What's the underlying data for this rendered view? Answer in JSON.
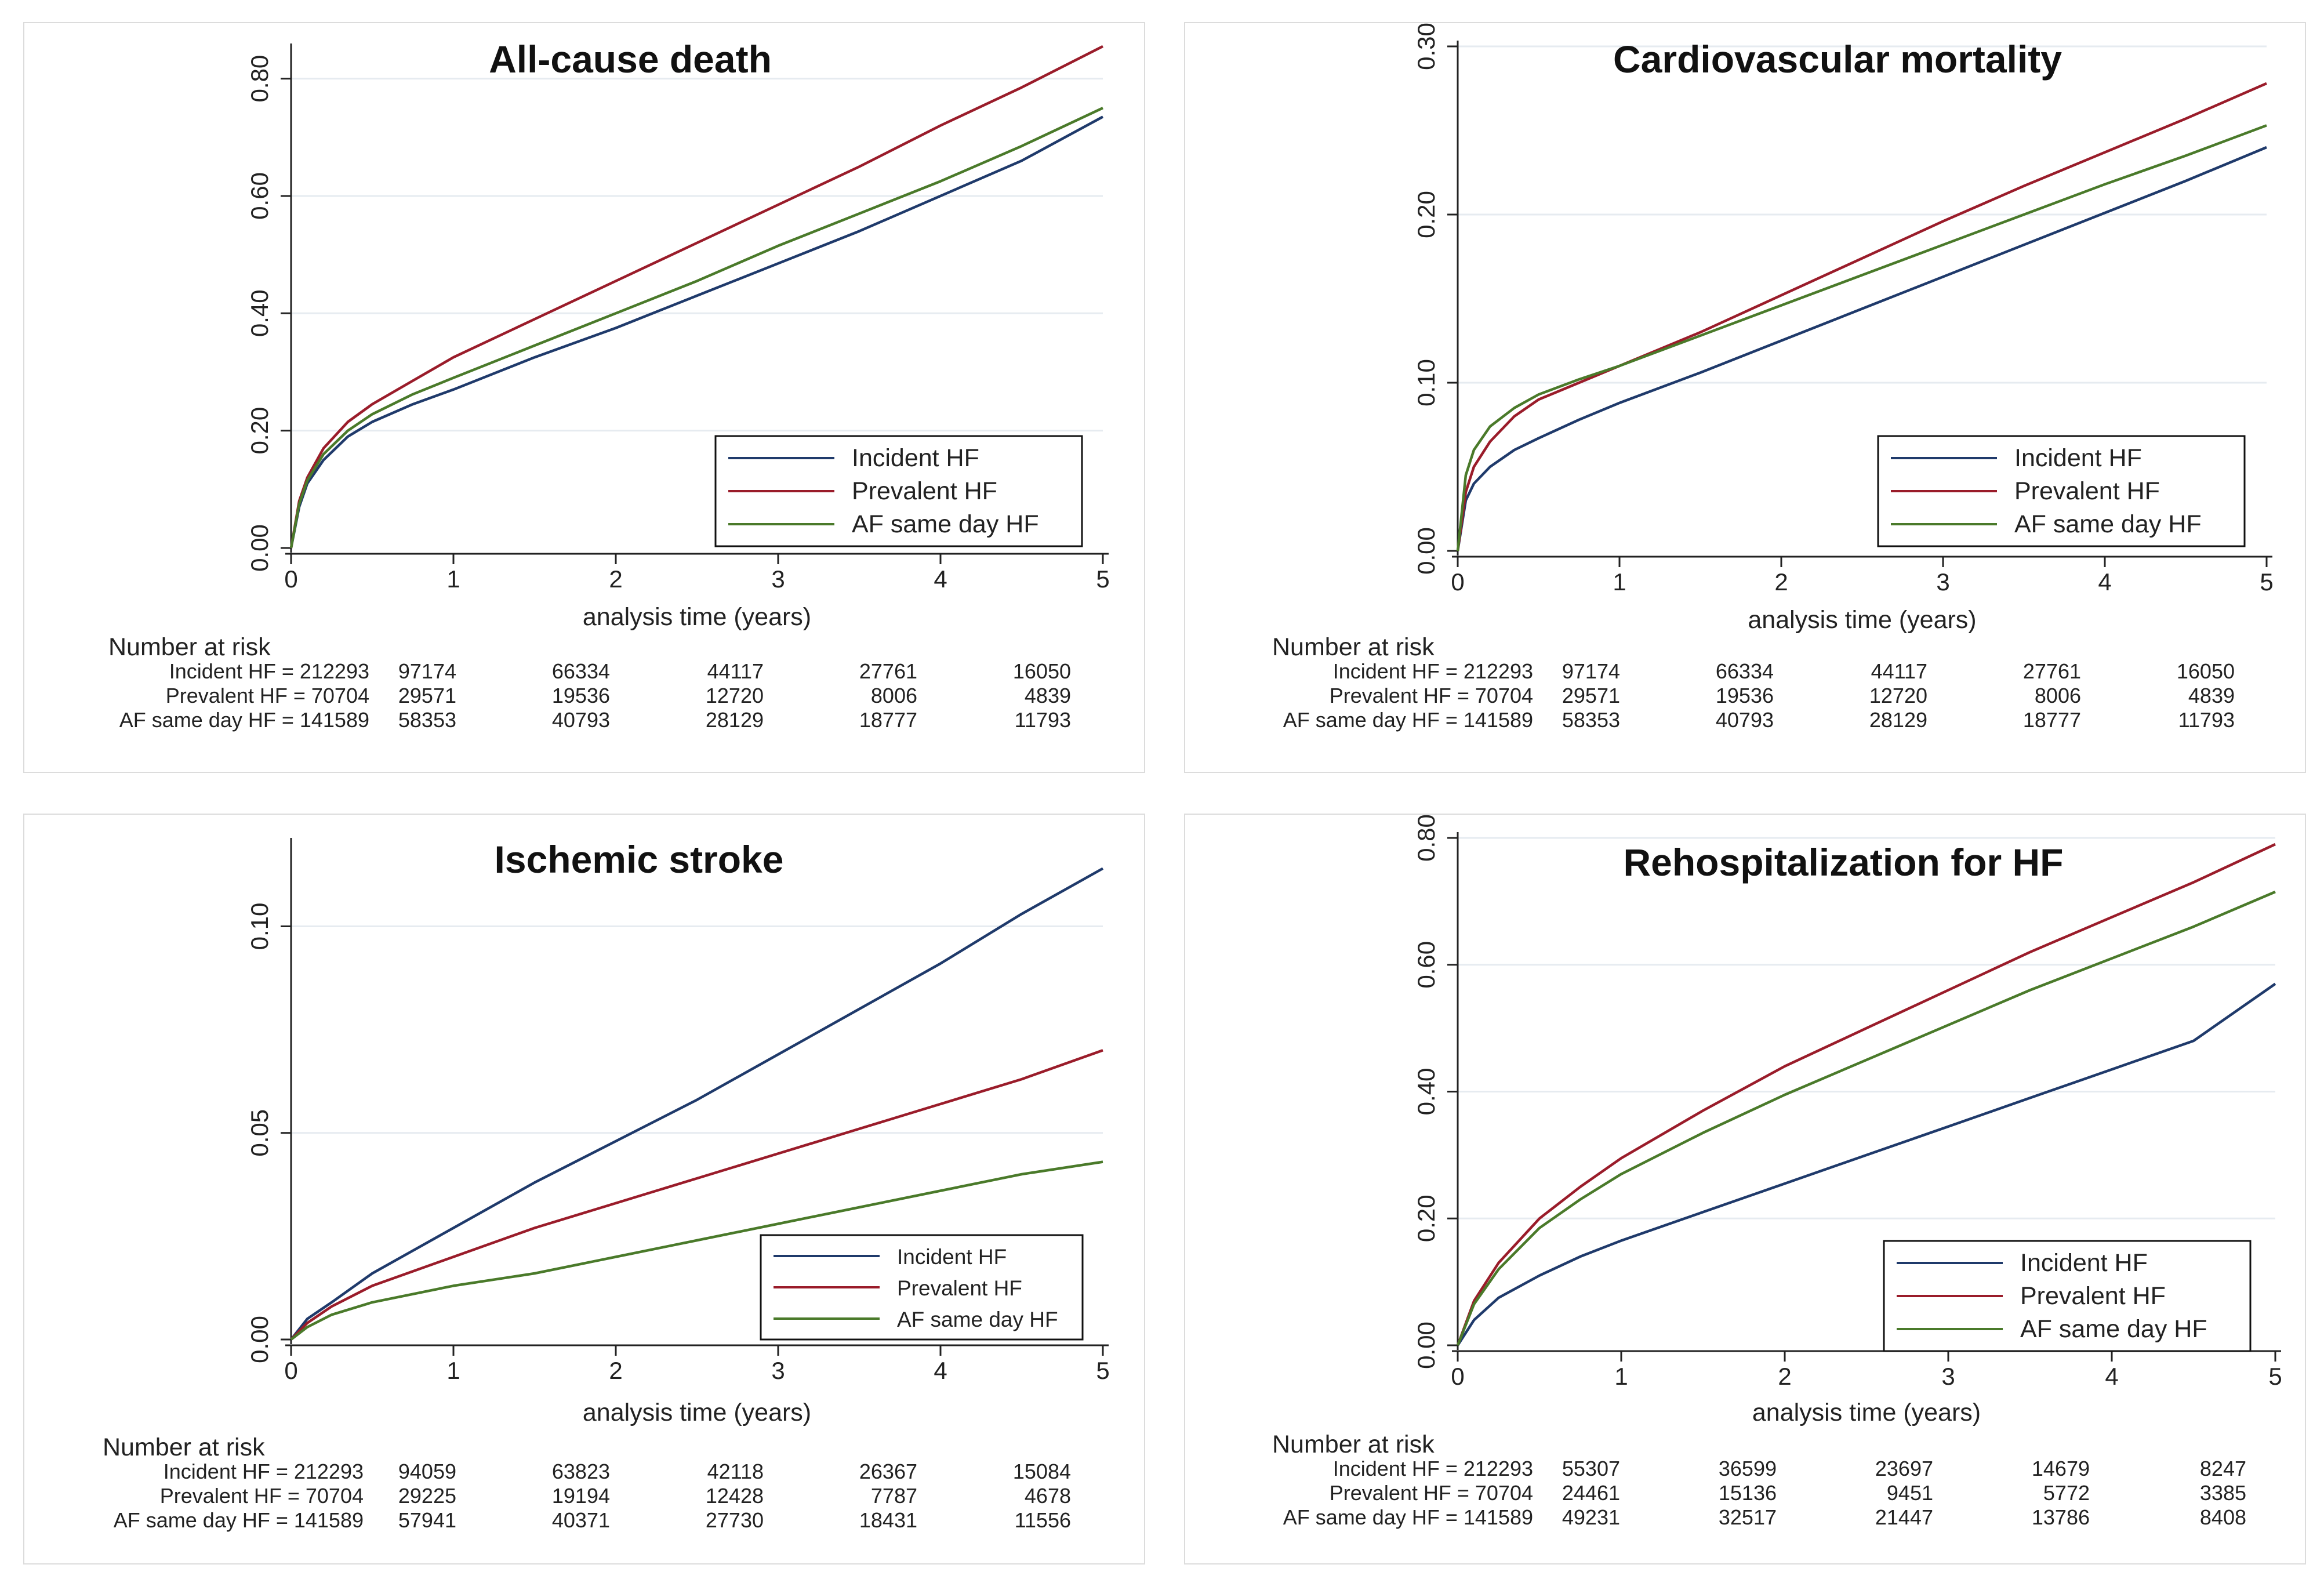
{
  "colors": {
    "incident": "#1f3a6b",
    "prevalent": "#9a1c2a",
    "af_same_day": "#4a7a2a",
    "grid": "#e6ebf0",
    "axis": "#222222"
  },
  "risk_header": "Number at risk",
  "chart_data": [
    {
      "type": "line",
      "title": "All-cause death",
      "xlabel": "analysis time (years)",
      "ylabel": "",
      "xlim": [
        0,
        5
      ],
      "ylim": [
        0,
        0.85
      ],
      "x_ticks": [
        0,
        1,
        2,
        3,
        4,
        5
      ],
      "x_tick_labels": [
        "0",
        "1",
        "2",
        "3",
        "4",
        "5"
      ],
      "y_ticks": [
        0,
        0.2,
        0.4,
        0.6,
        0.8
      ],
      "y_tick_labels": [
        "0.00",
        "0.20",
        "0.40",
        "0.60",
        "0.80"
      ],
      "grid": true,
      "legend_position": "bottom-right",
      "series": [
        {
          "name": "Incident HF",
          "key": "incident",
          "x": [
            0,
            0.05,
            0.1,
            0.2,
            0.35,
            0.5,
            0.75,
            1,
            1.5,
            2,
            2.5,
            3,
            3.5,
            4,
            4.5,
            5
          ],
          "y": [
            0,
            0.07,
            0.11,
            0.15,
            0.19,
            0.215,
            0.245,
            0.27,
            0.325,
            0.375,
            0.43,
            0.485,
            0.54,
            0.6,
            0.66,
            0.735
          ]
        },
        {
          "name": "Prevalent HF",
          "key": "prevalent",
          "x": [
            0,
            0.05,
            0.1,
            0.2,
            0.35,
            0.5,
            0.75,
            1,
            1.5,
            2,
            2.5,
            3,
            3.5,
            4,
            4.5,
            5
          ],
          "y": [
            0,
            0.08,
            0.12,
            0.17,
            0.215,
            0.245,
            0.285,
            0.325,
            0.39,
            0.455,
            0.52,
            0.585,
            0.65,
            0.72,
            0.785,
            0.855
          ]
        },
        {
          "name": "AF same day HF",
          "key": "af_same_day",
          "x": [
            0,
            0.05,
            0.1,
            0.2,
            0.35,
            0.5,
            0.75,
            1,
            1.5,
            2,
            2.5,
            3,
            3.5,
            4,
            4.5,
            5
          ],
          "y": [
            0,
            0.075,
            0.115,
            0.16,
            0.2,
            0.228,
            0.262,
            0.29,
            0.345,
            0.4,
            0.455,
            0.515,
            0.57,
            0.625,
            0.685,
            0.75
          ]
        }
      ],
      "risk_table": [
        {
          "label": "Incident HF = 212293",
          "values": [
            "97174",
            "66334",
            "44117",
            "27761",
            "16050"
          ]
        },
        {
          "label": "Prevalent HF = 70704",
          "values": [
            "29571",
            "19536",
            "12720",
            "8006",
            "4839"
          ]
        },
        {
          "label": "AF same day HF = 141589",
          "values": [
            "58353",
            "40793",
            "28129",
            "18777",
            "11793"
          ]
        }
      ]
    },
    {
      "type": "line",
      "title": "Cardiovascular mortality",
      "xlabel": "analysis time (years)",
      "ylabel": "",
      "xlim": [
        0,
        5
      ],
      "ylim": [
        0,
        0.3
      ],
      "x_ticks": [
        0,
        1,
        2,
        3,
        4,
        5
      ],
      "x_tick_labels": [
        "0",
        "1",
        "2",
        "3",
        "4",
        "5"
      ],
      "y_ticks": [
        0,
        0.1,
        0.2,
        0.3
      ],
      "y_tick_labels": [
        "0.00",
        "0.10",
        "0.20",
        "0.30"
      ],
      "grid": true,
      "legend_position": "bottom-right",
      "series": [
        {
          "name": "Incident HF",
          "key": "incident",
          "x": [
            0,
            0.05,
            0.1,
            0.2,
            0.35,
            0.5,
            0.75,
            1,
            1.5,
            2,
            2.5,
            3,
            3.5,
            4,
            4.5,
            5
          ],
          "y": [
            0,
            0.03,
            0.04,
            0.05,
            0.06,
            0.067,
            0.078,
            0.088,
            0.106,
            0.125,
            0.144,
            0.163,
            0.182,
            0.201,
            0.22,
            0.24
          ]
        },
        {
          "name": "Prevalent HF",
          "key": "prevalent",
          "x": [
            0,
            0.05,
            0.1,
            0.2,
            0.35,
            0.5,
            0.75,
            1,
            1.5,
            2,
            2.5,
            3,
            3.5,
            4,
            4.5,
            5
          ],
          "y": [
            0,
            0.035,
            0.05,
            0.065,
            0.08,
            0.09,
            0.1,
            0.11,
            0.13,
            0.152,
            0.174,
            0.196,
            0.217,
            0.237,
            0.257,
            0.278
          ]
        },
        {
          "name": "AF same day HF",
          "key": "af_same_day",
          "x": [
            0,
            0.05,
            0.1,
            0.2,
            0.35,
            0.5,
            0.75,
            1,
            1.5,
            2,
            2.5,
            3,
            3.5,
            4,
            4.5,
            5
          ],
          "y": [
            0,
            0.045,
            0.06,
            0.074,
            0.085,
            0.093,
            0.102,
            0.11,
            0.128,
            0.146,
            0.164,
            0.182,
            0.2,
            0.218,
            0.235,
            0.253
          ]
        }
      ],
      "risk_table": [
        {
          "label": "Incident HF = 212293",
          "values": [
            "97174",
            "66334",
            "44117",
            "27761",
            "16050"
          ]
        },
        {
          "label": "Prevalent HF = 70704",
          "values": [
            "29571",
            "19536",
            "12720",
            "8006",
            "4839"
          ]
        },
        {
          "label": "AF same day HF = 141589",
          "values": [
            "58353",
            "40793",
            "28129",
            "18777",
            "11793"
          ]
        }
      ]
    },
    {
      "type": "line",
      "title": "Ischemic stroke",
      "xlabel": "analysis time (years)",
      "ylabel": "",
      "xlim": [
        0,
        5
      ],
      "ylim": [
        0,
        0.12
      ],
      "x_ticks": [
        0,
        1,
        2,
        3,
        4,
        5
      ],
      "x_tick_labels": [
        "0",
        "1",
        "2",
        "3",
        "4",
        "5"
      ],
      "y_ticks": [
        0,
        0.05,
        0.1
      ],
      "y_tick_labels": [
        "0.00",
        "0.05",
        "0.10"
      ],
      "grid": true,
      "legend_position": "bottom-right",
      "series": [
        {
          "name": "Incident HF",
          "key": "incident",
          "x": [
            0,
            0.1,
            0.25,
            0.5,
            1,
            1.5,
            2,
            2.5,
            3,
            3.5,
            4,
            4.5,
            5
          ],
          "y": [
            0,
            0.005,
            0.009,
            0.016,
            0.027,
            0.038,
            0.048,
            0.058,
            0.069,
            0.08,
            0.091,
            0.103,
            0.114
          ]
        },
        {
          "name": "Prevalent HF",
          "key": "prevalent",
          "x": [
            0,
            0.1,
            0.25,
            0.5,
            1,
            1.5,
            2,
            2.5,
            3,
            3.5,
            4,
            4.5,
            5
          ],
          "y": [
            0,
            0.004,
            0.008,
            0.013,
            0.02,
            0.027,
            0.033,
            0.039,
            0.045,
            0.051,
            0.057,
            0.063,
            0.07
          ]
        },
        {
          "name": "AF same day HF",
          "key": "af_same_day",
          "x": [
            0,
            0.1,
            0.25,
            0.5,
            1,
            1.5,
            2,
            2.5,
            3,
            3.5,
            4,
            4.5,
            5
          ],
          "y": [
            0,
            0.003,
            0.006,
            0.009,
            0.013,
            0.016,
            0.02,
            0.024,
            0.028,
            0.032,
            0.036,
            0.04,
            0.043
          ]
        }
      ],
      "risk_table": [
        {
          "label": "Incident HF = 212293",
          "values": [
            "94059",
            "63823",
            "42118",
            "26367",
            "15084"
          ]
        },
        {
          "label": "Prevalent HF = 70704",
          "values": [
            "29225",
            "19194",
            "12428",
            "7787",
            "4678"
          ]
        },
        {
          "label": "AF same day HF = 141589",
          "values": [
            "57941",
            "40371",
            "27730",
            "18431",
            "11556"
          ]
        }
      ]
    },
    {
      "type": "line",
      "title": "Rehospitalization for HF",
      "xlabel": "analysis time (years)",
      "ylabel": "",
      "xlim": [
        0,
        5
      ],
      "ylim": [
        0,
        0.8
      ],
      "x_ticks": [
        0,
        1,
        2,
        3,
        4,
        5
      ],
      "x_tick_labels": [
        "0",
        "1",
        "2",
        "3",
        "4",
        "5"
      ],
      "y_ticks": [
        0,
        0.2,
        0.4,
        0.6,
        0.8
      ],
      "y_tick_labels": [
        "0.00",
        "0.20",
        "0.40",
        "0.60",
        "0.80"
      ],
      "grid": true,
      "legend_position": "bottom-right",
      "series": [
        {
          "name": "Incident HF",
          "key": "incident",
          "x": [
            0,
            0.1,
            0.25,
            0.5,
            0.75,
            1,
            1.5,
            2,
            2.5,
            3,
            3.5,
            4,
            4.5,
            5
          ],
          "y": [
            0,
            0.04,
            0.075,
            0.11,
            0.14,
            0.165,
            0.21,
            0.255,
            0.3,
            0.345,
            0.39,
            0.435,
            0.48,
            0.57
          ]
        },
        {
          "name": "Prevalent HF",
          "key": "prevalent",
          "x": [
            0,
            0.1,
            0.25,
            0.5,
            0.75,
            1,
            1.5,
            2,
            2.5,
            3,
            3.5,
            4,
            4.5,
            5
          ],
          "y": [
            0,
            0.07,
            0.13,
            0.2,
            0.25,
            0.295,
            0.37,
            0.44,
            0.5,
            0.56,
            0.62,
            0.675,
            0.73,
            0.79
          ]
        },
        {
          "name": "AF same day HF",
          "key": "af_same_day",
          "x": [
            0,
            0.1,
            0.25,
            0.5,
            0.75,
            1,
            1.5,
            2,
            2.5,
            3,
            3.5,
            4,
            4.5,
            5
          ],
          "y": [
            0,
            0.065,
            0.12,
            0.185,
            0.23,
            0.27,
            0.335,
            0.395,
            0.45,
            0.505,
            0.56,
            0.61,
            0.66,
            0.715
          ]
        }
      ],
      "risk_table": [
        {
          "label": "Incident HF = 212293",
          "values": [
            "55307",
            "36599",
            "23697",
            "14679",
            "8247"
          ]
        },
        {
          "label": "Prevalent HF = 70704",
          "values": [
            "24461",
            "15136",
            "9451",
            "5772",
            "3385"
          ]
        },
        {
          "label": "AF same day HF = 141589",
          "values": [
            "49231",
            "32517",
            "21447",
            "13786",
            "8408"
          ]
        }
      ]
    }
  ]
}
